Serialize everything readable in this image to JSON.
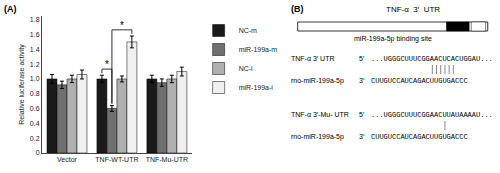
{
  "chart_data": [
    {
      "type": "bar",
      "title": "(A)",
      "categories": [
        "Vector",
        "TNF-WT-UTR",
        "TNF-Mu-UTR"
      ],
      "series": [
        {
          "name": "NC-m",
          "color": "#1a1a1a",
          "values": [
            1.0,
            1.0,
            1.0
          ],
          "errors": [
            0.06,
            0.05,
            0.05
          ]
        },
        {
          "name": "miR-199a-m",
          "color": "#707070",
          "values": [
            0.92,
            0.6,
            0.95
          ],
          "errors": [
            0.05,
            0.04,
            0.05
          ]
        },
        {
          "name": "NC-i",
          "color": "#b0b0b0",
          "values": [
            1.0,
            1.0,
            1.0
          ],
          "errors": [
            0.05,
            0.04,
            0.05
          ]
        },
        {
          "name": "miR-199a-i",
          "color": "#f0f0f0",
          "values": [
            1.06,
            1.5,
            1.1
          ],
          "errors": [
            0.06,
            0.08,
            0.06
          ]
        }
      ],
      "ylabel": "Relative luciferase activity",
      "ylim": [
        0,
        1.85
      ],
      "yticks": [
        0,
        0.2,
        0.4,
        0.6,
        0.8,
        {
          "value": 1,
          "label": "1.0"
        },
        1.2,
        1.4,
        1.6,
        1.8
      ],
      "grid": false,
      "legend": "right",
      "annotations": [
        {
          "text": "*",
          "category": "TNF-WT-UTR",
          "from": "miR-199a-m",
          "to": "miR-199a-i"
        },
        {
          "text": "*",
          "category": "TNF-WT-UTR",
          "from": "NC-m",
          "to": "miR-199a-m"
        }
      ]
    },
    {
      "type": "diagram",
      "title": "(B)",
      "subtitle": "TNF-α  3′  UTR",
      "annotations": [
        "miR-199a-5p binding site"
      ],
      "sequences": [
        {
          "label": "TNF-α 3′ UTR",
          "prime": "5′",
          "seq": "...UGGGCUUUCGGAACUCACUGGAU..."
        },
        {
          "label": "rno-miR-199a-5p",
          "prime": "3′",
          "seq": "CUUGUCCAUCAGACUUGUGACCC"
        },
        {
          "label": "TNF-α 3′-Mu- UTR",
          "prime": "5′",
          "seq": "...UGGGCUUUCGGAACUUAUAAAAU..."
        },
        {
          "label": "rno-miR-199a-5p",
          "prime": "3′",
          "seq": "CUUGUCCAUCAGACUUGUGACCC"
        }
      ],
      "match_positions": [
        [
          14,
          15,
          16,
          17,
          18,
          19
        ],
        [
          17
        ]
      ]
    }
  ]
}
